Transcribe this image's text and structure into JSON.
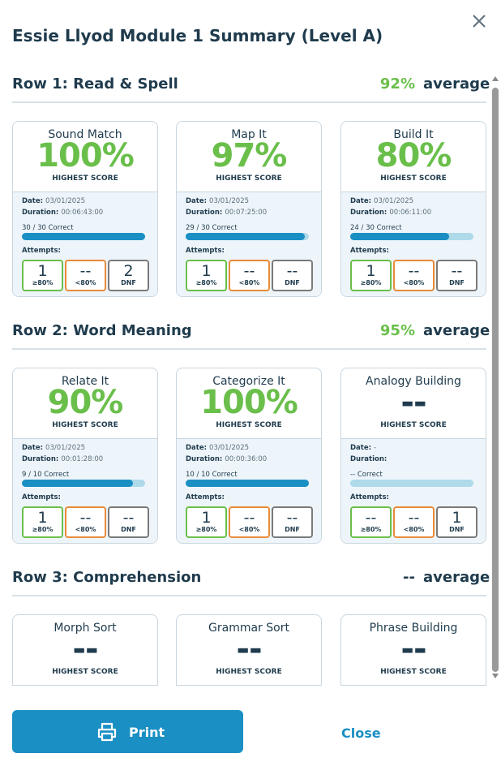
{
  "title": "Essie Llyod Module 1 Summary (Level A)",
  "labels": {
    "highest_score": "HIGHEST SCORE",
    "date": "Date:",
    "duration": "Duration:",
    "attempts": "Attempts:",
    "average": "average",
    "pass": "≥80%",
    "fail": "<80%",
    "dnf": "DNF"
  },
  "rows": [
    {
      "heading": "Row 1: Read & Spell",
      "average": "92%",
      "cards": [
        {
          "name": "Sound Match",
          "score": "100%",
          "date": "03/01/2025",
          "duration": "00:06:43:00",
          "correct": "30 / 30 Correct",
          "progress": 100,
          "attempts": [
            1,
            "--",
            2
          ]
        },
        {
          "name": "Map It",
          "score": "97%",
          "date": "03/01/2025",
          "duration": "00:07:25:00",
          "correct": "29 / 30 Correct",
          "progress": 97,
          "attempts": [
            1,
            "--",
            "--"
          ]
        },
        {
          "name": "Build It",
          "score": "80%",
          "date": "03/01/2025",
          "duration": "00:06:11:00",
          "correct": "24 / 30 Correct",
          "progress": 80,
          "attempts": [
            1,
            "--",
            "--"
          ]
        }
      ]
    },
    {
      "heading": "Row 2: Word Meaning",
      "average": "95%",
      "cards": [
        {
          "name": "Relate It",
          "score": "90%",
          "date": "03/01/2025",
          "duration": "00:01:28:00",
          "correct": "9 / 10 Correct",
          "progress": 90,
          "attempts": [
            1,
            "--",
            "--"
          ]
        },
        {
          "name": "Categorize It",
          "score": "100%",
          "date": "03/01/2025",
          "duration": "00:00:36:00",
          "correct": "10 / 10 Correct",
          "progress": 100,
          "attempts": [
            1,
            "--",
            "--"
          ]
        },
        {
          "name": "Analogy Building",
          "score": "--",
          "date": "-",
          "correct": "-- Correct",
          "progress": 0,
          "attempts": [
            "--",
            "--",
            1
          ]
        }
      ]
    },
    {
      "heading": "Row 3: Comprehension",
      "average": "--",
      "cards": [
        {
          "name": "Morph Sort",
          "score": "--"
        },
        {
          "name": "Grammar Sort",
          "score": "--"
        },
        {
          "name": "Phrase Building",
          "score": "--"
        }
      ]
    }
  ],
  "buttons": {
    "print": "Print",
    "close": "Close"
  }
}
